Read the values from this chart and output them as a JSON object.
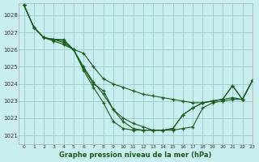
{
  "title": "Graphe pression niveau de la mer (hPa)",
  "bg_color": "#c8eef0",
  "grid_color": "#9ecfcc",
  "line_color": "#1a5c1a",
  "marker_color": "#1a5c1a",
  "xlim": [
    -0.5,
    23
  ],
  "ylim": [
    1020.5,
    1028.7
  ],
  "yticks": [
    1021,
    1022,
    1023,
    1024,
    1025,
    1026,
    1027,
    1028
  ],
  "xticks": [
    0,
    1,
    2,
    3,
    4,
    5,
    6,
    7,
    8,
    9,
    10,
    11,
    12,
    13,
    14,
    15,
    16,
    17,
    18,
    19,
    20,
    21,
    22,
    23
  ],
  "series": [
    [
      1028.6,
      1027.3,
      1026.7,
      1026.6,
      1026.6,
      1026.0,
      1025.8,
      1025.0,
      1024.3,
      1024.0,
      1023.8,
      1023.6,
      1023.4,
      1023.3,
      1023.2,
      1023.1,
      1023.0,
      1022.9,
      1022.9,
      1023.0,
      1023.1,
      1023.2,
      1023.1,
      1024.2
    ],
    [
      1028.6,
      1027.3,
      1026.7,
      1026.6,
      1026.5,
      1026.0,
      1025.0,
      1024.1,
      1023.4,
      1022.5,
      1022.0,
      1021.7,
      1021.5,
      1021.3,
      1021.3,
      1021.3,
      1021.4,
      1021.5,
      1022.6,
      1022.9,
      1023.0,
      1023.1,
      1023.1,
      1024.2
    ],
    [
      1028.6,
      1027.3,
      1026.7,
      1026.6,
      1026.4,
      1026.0,
      1024.9,
      1024.0,
      1023.6,
      1022.5,
      1021.8,
      1021.4,
      1021.3,
      1021.3,
      1021.3,
      1021.4,
      1022.2,
      1022.6,
      1022.9,
      1023.0,
      1023.1,
      1023.9,
      1023.1,
      1024.2
    ],
    [
      1028.6,
      1027.3,
      1026.7,
      1026.5,
      1026.3,
      1026.0,
      1024.8,
      1023.8,
      1022.9,
      1021.8,
      1021.4,
      1021.3,
      1021.3,
      1021.3,
      1021.3,
      1021.4,
      1022.2,
      1022.6,
      1022.9,
      1023.0,
      1023.1,
      1023.9,
      1023.1,
      1024.2
    ]
  ]
}
